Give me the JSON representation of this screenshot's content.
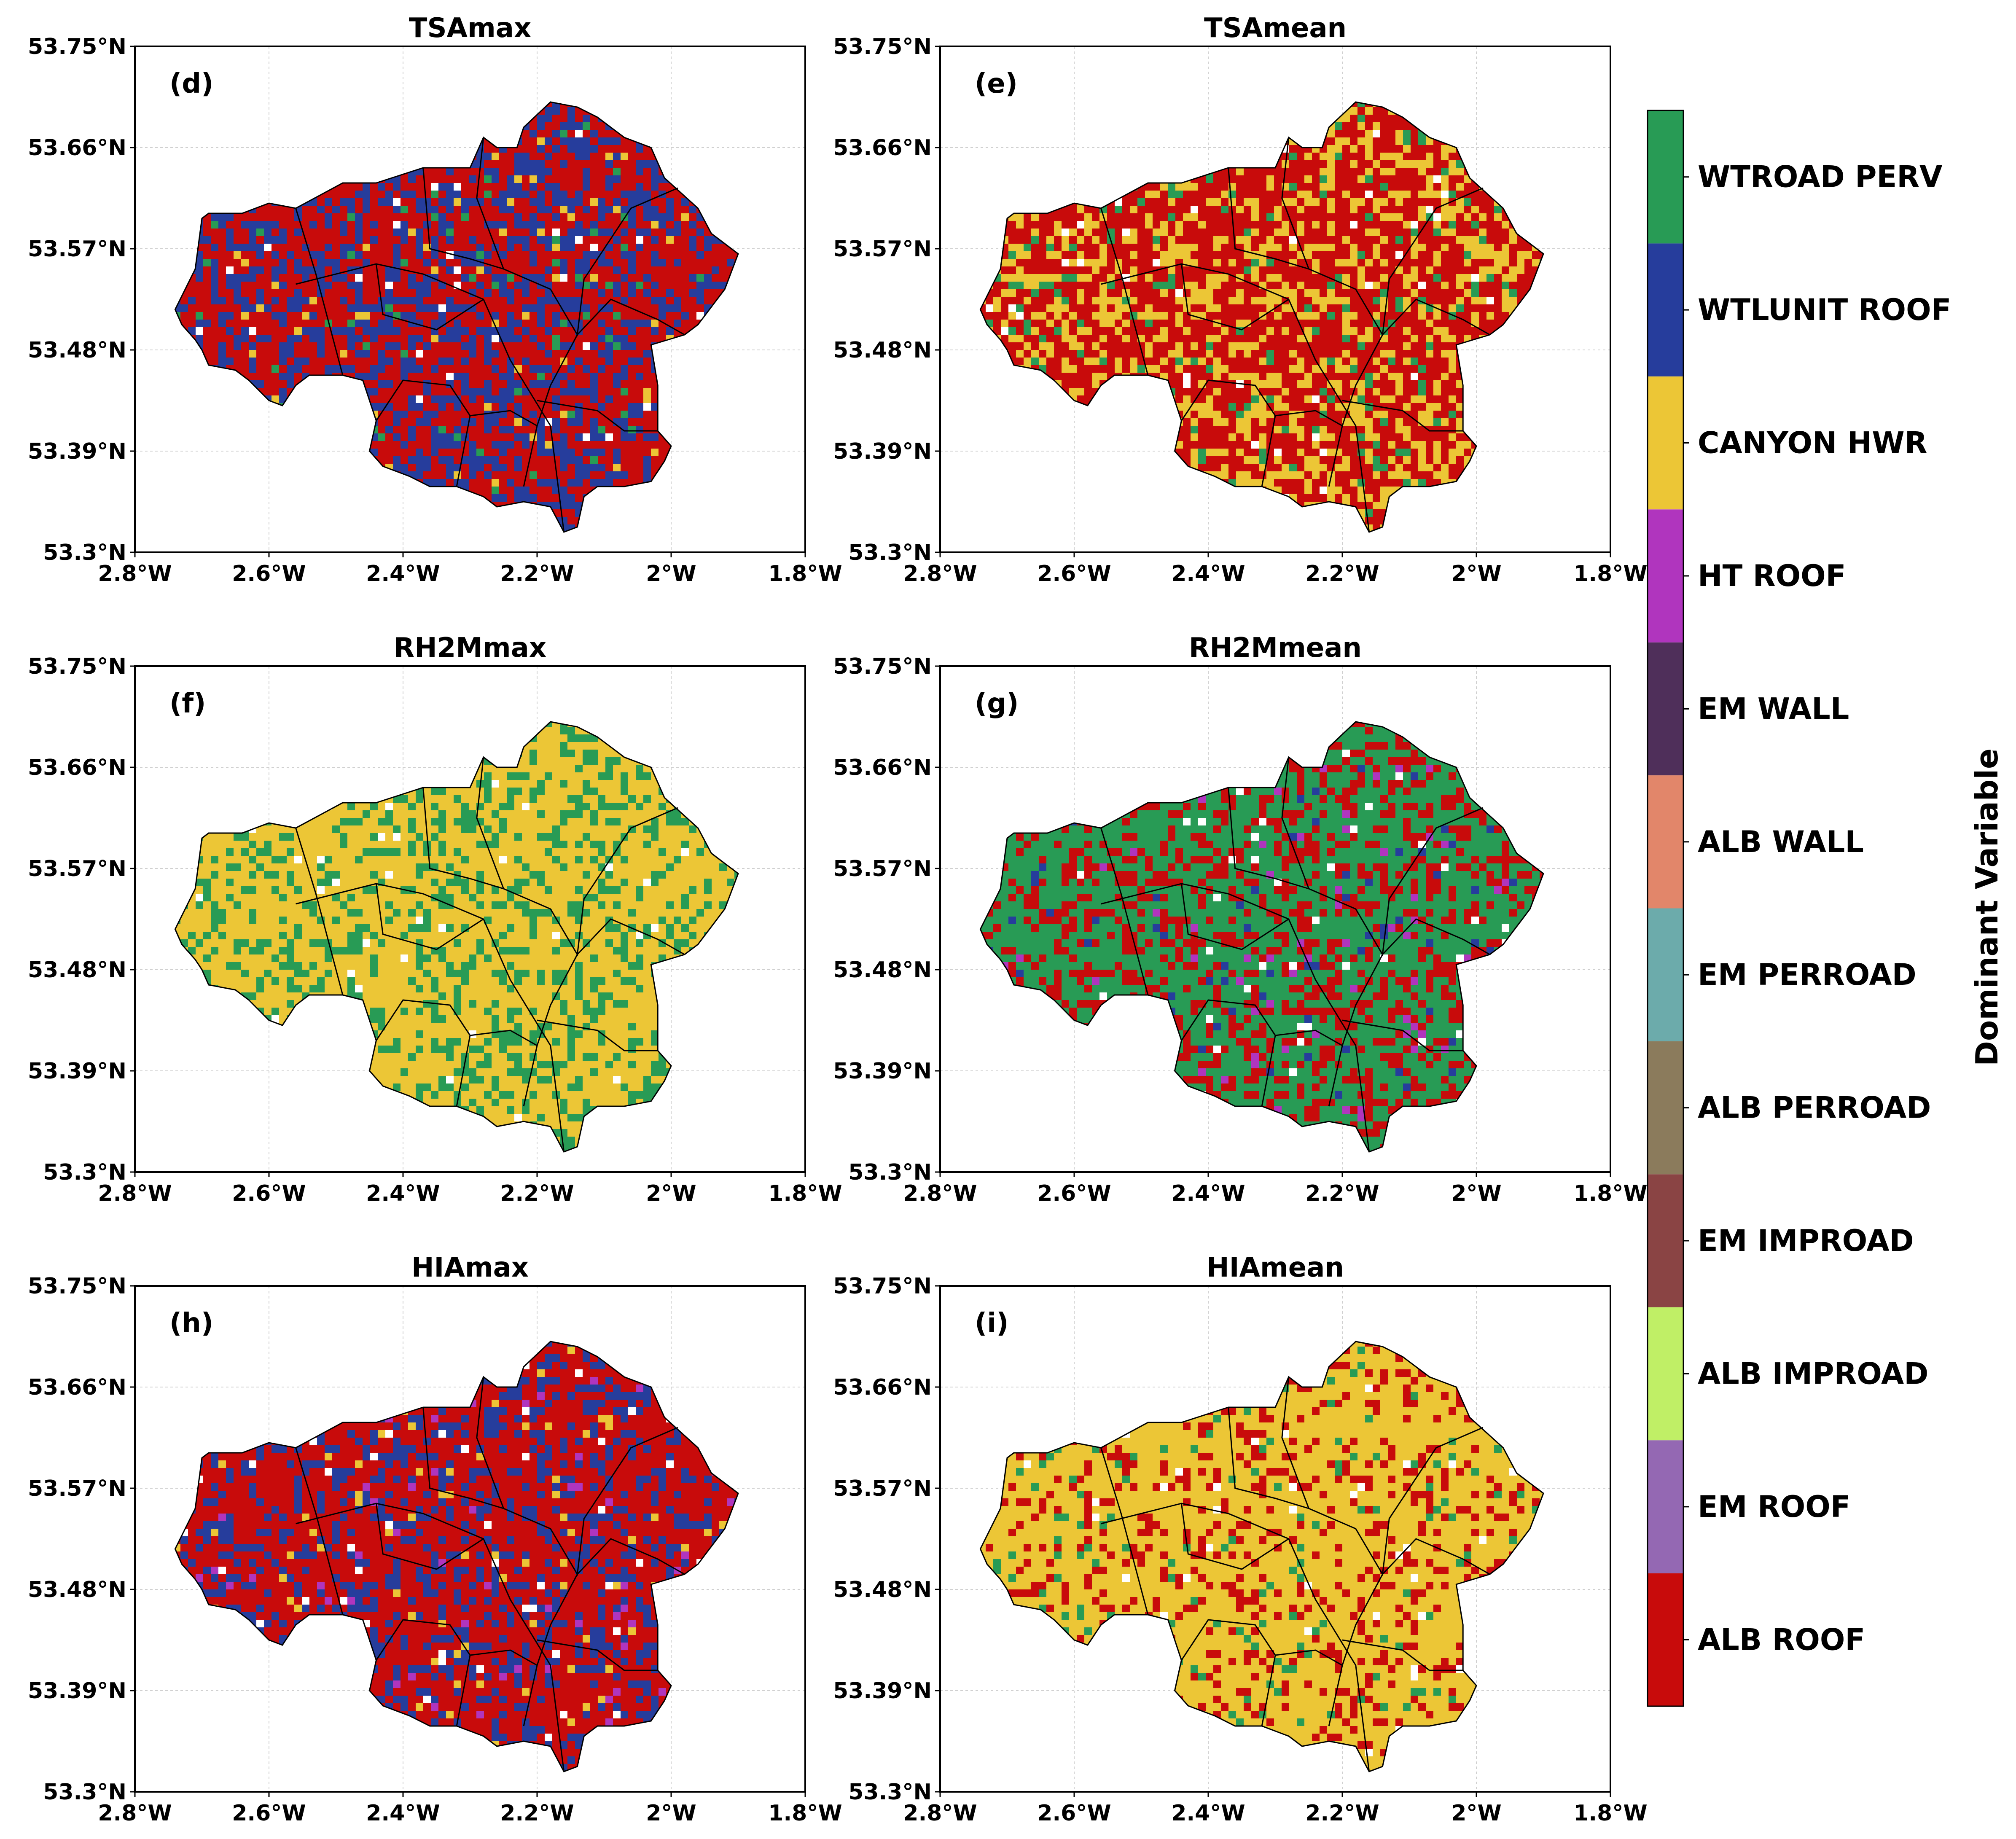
{
  "figure": {
    "colorbar_label": "Dominant Variable",
    "categories": [
      {
        "name": "ALB ROOF",
        "color": "#c80b0b"
      },
      {
        "name": "EM ROOF",
        "color": "#9468b3"
      },
      {
        "name": "ALB IMPROAD",
        "color": "#c0ef66"
      },
      {
        "name": "EM IMPROAD",
        "color": "#8a4444"
      },
      {
        "name": "ALB PERROAD",
        "color": "#8b7b5c"
      },
      {
        "name": "EM PERROAD",
        "color": "#6cabab"
      },
      {
        "name": "ALB WALL",
        "color": "#e2866a"
      },
      {
        "name": "EM WALL",
        "color": "#4f2f5a"
      },
      {
        "name": "HT ROOF",
        "color": "#b035be"
      },
      {
        "name": "CANYON HWR",
        "color": "#ecc636"
      },
      {
        "name": "WTLUNIT ROOF",
        "color": "#263d9c"
      },
      {
        "name": "WTROAD PERV",
        "color": "#289b55"
      }
    ]
  },
  "axes": {
    "lat_ticks": [
      "53.75°N",
      "53.66°N",
      "53.57°N",
      "53.48°N",
      "53.39°N",
      "53.3°N"
    ],
    "lon_ticks": [
      "2.8°W",
      "2.6°W",
      "2.4°W",
      "2.2°W",
      "2°W",
      "1.8°W"
    ],
    "lat_range": [
      53.3,
      53.75
    ],
    "lon_range": [
      -2.8,
      -1.8
    ]
  },
  "panels": [
    {
      "title": "TSAmax",
      "label": "(d)",
      "dominant": "ALB ROOF",
      "secondary": "WTLUNIT ROOF",
      "minor": [
        "WTROAD PERV",
        "CANYON HWR"
      ]
    },
    {
      "title": "TSAmean",
      "label": "(e)",
      "dominant": "ALB ROOF",
      "secondary": "CANYON HWR",
      "minor": [
        "WTROAD PERV"
      ]
    },
    {
      "title": "RH2Mmax",
      "label": "(f)",
      "dominant": "CANYON HWR",
      "secondary": "WTROAD PERV",
      "minor": []
    },
    {
      "title": "RH2Mmean",
      "label": "(g)",
      "dominant": "WTROAD PERV",
      "secondary": "ALB ROOF",
      "minor": [
        "WTLUNIT ROOF",
        "HT ROOF"
      ]
    },
    {
      "title": "HIAmax",
      "label": "(h)",
      "dominant": "ALB ROOF",
      "secondary": "WTLUNIT ROOF",
      "minor": [
        "CANYON HWR",
        "HT ROOF"
      ]
    },
    {
      "title": "HIAmean",
      "label": "(i)",
      "dominant": "CANYON HWR",
      "secondary": "ALB ROOF",
      "minor": [
        "WTROAD PERV"
      ]
    }
  ]
}
